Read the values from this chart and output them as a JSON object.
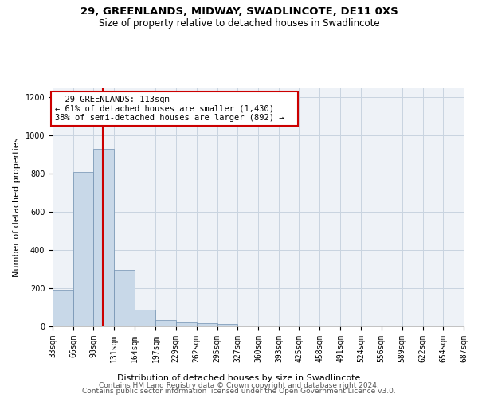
{
  "title1": "29, GREENLANDS, MIDWAY, SWADLINCOTE, DE11 0XS",
  "title2": "Size of property relative to detached houses in Swadlincote",
  "xlabel": "Distribution of detached houses by size in Swadlincote",
  "ylabel": "Number of detached properties",
  "footer1": "Contains HM Land Registry data © Crown copyright and database right 2024.",
  "footer2": "Contains public sector information licensed under the Open Government Licence v3.0.",
  "annotation_line1": "29 GREENLANDS: 113sqm",
  "annotation_line2": "← 61% of detached houses are smaller (1,430)",
  "annotation_line3": "38% of semi-detached houses are larger (892) →",
  "property_size": 113,
  "bar_color": "#c8d8e8",
  "bar_edge_color": "#7090b0",
  "vline_color": "#cc0000",
  "annotation_box_edge": "#cc0000",
  "bins": [
    33,
    66,
    98,
    131,
    164,
    197,
    229,
    262,
    295,
    327,
    360,
    393,
    425,
    458,
    491,
    524,
    556,
    589,
    622,
    654,
    687
  ],
  "values": [
    190,
    810,
    930,
    295,
    88,
    35,
    20,
    16,
    12,
    0,
    0,
    0,
    0,
    0,
    0,
    0,
    0,
    0,
    0,
    0
  ],
  "ylim": [
    0,
    1250
  ],
  "yticks": [
    0,
    200,
    400,
    600,
    800,
    1000,
    1200
  ],
  "background_color": "#eef2f7",
  "grid_color": "#c8d4e0",
  "title_fontsize": 9.5,
  "subtitle_fontsize": 8.5,
  "axis_label_fontsize": 8,
  "tick_fontsize": 7,
  "footer_fontsize": 6.5,
  "annotation_fontsize": 7.5
}
